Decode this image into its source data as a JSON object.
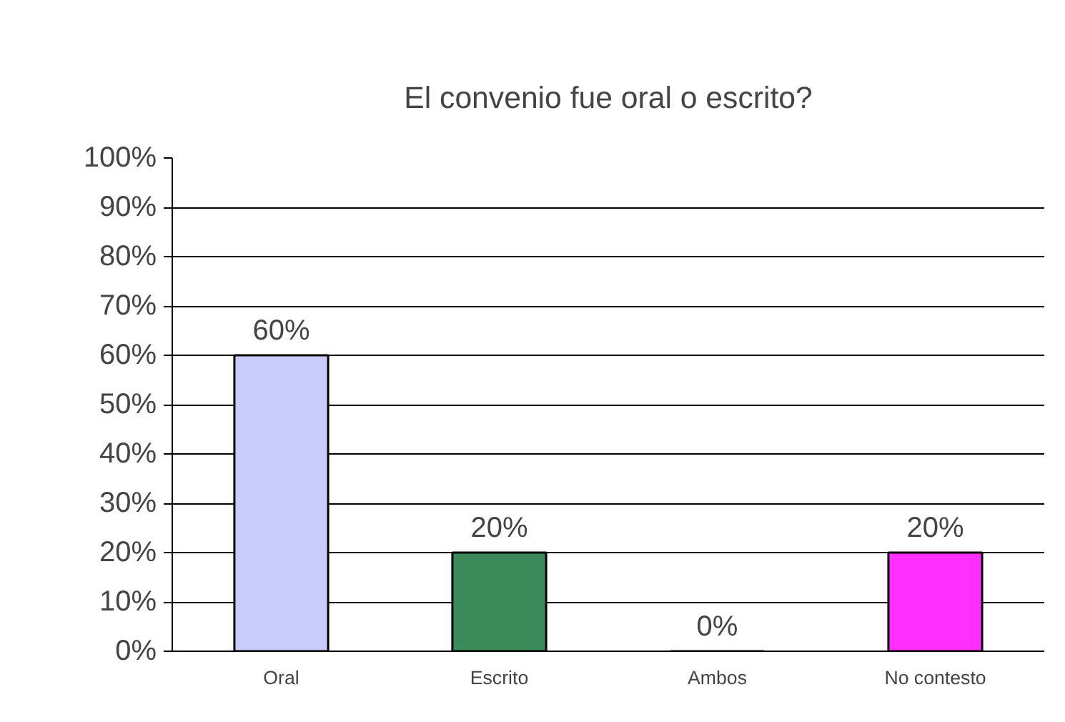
{
  "chart_data": {
    "type": "bar",
    "title": "El convenio fue oral o escrito?",
    "categories": [
      "Oral",
      "Escrito",
      "Ambos",
      "No contesto"
    ],
    "values": [
      60,
      20,
      0,
      20
    ],
    "colors": [
      "#c8ccf8",
      "#3a8a5a",
      "#000000",
      "#ff30ff"
    ],
    "value_labels": [
      "60%",
      "20%",
      "0%",
      "20%"
    ],
    "ylim": [
      0,
      100
    ],
    "yticks": [
      {
        "value": 0,
        "label": "0%"
      },
      {
        "value": 10,
        "label": "10%"
      },
      {
        "value": 20,
        "label": "20%"
      },
      {
        "value": 30,
        "label": "30%"
      },
      {
        "value": 40,
        "label": "40%"
      },
      {
        "value": 50,
        "label": "50%"
      },
      {
        "value": 60,
        "label": "60%"
      },
      {
        "value": 70,
        "label": "70%"
      },
      {
        "value": 80,
        "label": "80%"
      },
      {
        "value": 90,
        "label": "90%"
      },
      {
        "value": 100,
        "label": "100%"
      }
    ],
    "grid": "y"
  }
}
